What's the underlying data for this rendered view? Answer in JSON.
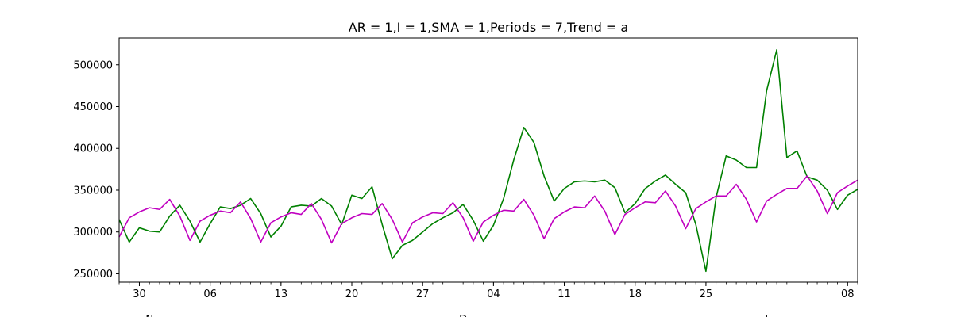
{
  "chart_data": {
    "type": "line",
    "title": "AR = 1,I = 1,SMA = 1,Periods = 7,Trend = a",
    "xlabel": "",
    "ylabel": "",
    "ylim": [
      240000,
      532000
    ],
    "yticks": [
      250000,
      300000,
      350000,
      400000,
      450000,
      500000
    ],
    "x_tick_labels": [
      "30",
      "06",
      "13",
      "20",
      "27",
      "04",
      "11",
      "18",
      "25",
      "08"
    ],
    "x_tick_positions": [
      2,
      9,
      16,
      23,
      30,
      37,
      44,
      51,
      58,
      72
    ],
    "month_labels": [
      "N",
      "D",
      "J"
    ],
    "month_label_positions": [
      3,
      34,
      64
    ],
    "x_range": [
      0,
      73
    ],
    "grid": false,
    "series": [
      {
        "color": "#008000",
        "values": [
          315000,
          288000,
          305000,
          301000,
          300000,
          319000,
          332000,
          313000,
          288000,
          310000,
          330000,
          328000,
          332000,
          340000,
          322000,
          294000,
          307000,
          330000,
          332000,
          331000,
          340000,
          331000,
          309000,
          344000,
          340000,
          354000,
          309000,
          268000,
          284000,
          290000,
          300000,
          310000,
          317000,
          323000,
          333000,
          314000,
          289000,
          308000,
          340000,
          386000,
          425000,
          407000,
          367000,
          337000,
          352000,
          360000,
          361000,
          360000,
          362000,
          353000,
          323000,
          334000,
          352000,
          361000,
          368000,
          357000,
          347000,
          309000,
          253000,
          341000,
          391000,
          386000,
          377000,
          377000,
          469000,
          518000,
          389000,
          397000,
          366000,
          362000,
          350000,
          327000,
          344000,
          351000
        ]
      },
      {
        "color": "#c000c0",
        "values": [
          294000,
          317000,
          324000,
          329000,
          327000,
          339000,
          319000,
          290000,
          313000,
          320000,
          325000,
          323000,
          336000,
          316000,
          288000,
          311000,
          318000,
          323000,
          321000,
          334000,
          315000,
          287000,
          310000,
          317000,
          322000,
          321000,
          334000,
          315000,
          288000,
          311000,
          318000,
          323000,
          322000,
          335000,
          317000,
          289000,
          312000,
          320000,
          326000,
          325000,
          339000,
          320000,
          292000,
          316000,
          324000,
          330000,
          329000,
          343000,
          325000,
          297000,
          321000,
          329000,
          336000,
          335000,
          349000,
          331000,
          304000,
          328000,
          336000,
          343000,
          343000,
          357000,
          339000,
          312000,
          337000,
          345000,
          352000,
          352000,
          367000,
          349000,
          322000,
          347000,
          355000,
          362000
        ]
      }
    ]
  }
}
